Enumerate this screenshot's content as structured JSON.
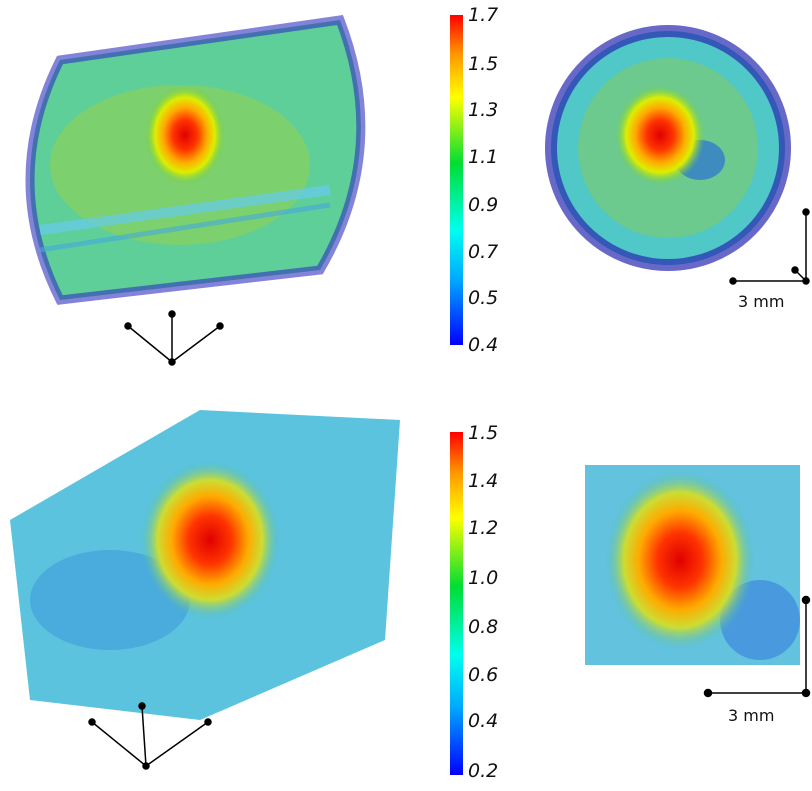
{
  "panels": {
    "top": {
      "colorbar": {
        "ticks": [
          "1.7",
          "1.5",
          "1.3",
          "1.1",
          "0.9",
          "0.7",
          "0.5",
          "0.4"
        ],
        "min": 0.4,
        "max": 1.7
      },
      "scale_label": "3 mm"
    },
    "bottom": {
      "colorbar": {
        "ticks": [
          "1.5",
          "1.4",
          "1.2",
          "1.0",
          "0.8",
          "0.6",
          "0.4",
          "0.2"
        ],
        "min": 0.2,
        "max": 1.5
      },
      "scale_label": "3 mm"
    }
  },
  "colors": {
    "low": "#0000ff",
    "mid": "#00dd44",
    "high": "#ff0000"
  }
}
